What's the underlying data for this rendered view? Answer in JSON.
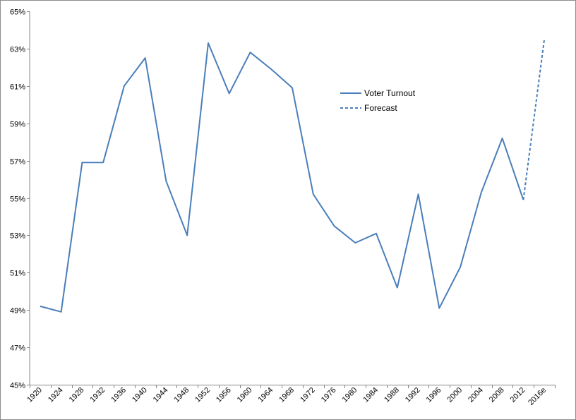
{
  "chart_data": {
    "type": "line",
    "title": "",
    "xlabel": "",
    "ylabel": "",
    "categories": [
      "1920",
      "1924",
      "1928",
      "1932",
      "1936",
      "1940",
      "1944",
      "1948",
      "1952",
      "1956",
      "1960",
      "1964",
      "1968",
      "1972",
      "1976",
      "1980",
      "1984",
      "1988",
      "1992",
      "1996",
      "2000",
      "2004",
      "2008",
      "2012",
      "2016e"
    ],
    "series": [
      {
        "name": "Voter Turnout",
        "style": "solid",
        "color": "#4a7eba",
        "values": [
          49.2,
          48.9,
          56.9,
          56.9,
          61.0,
          62.5,
          55.9,
          53.0,
          63.3,
          60.6,
          62.8,
          61.9,
          60.9,
          55.2,
          53.5,
          52.6,
          53.1,
          50.2,
          55.2,
          49.1,
          51.3,
          55.3,
          58.2,
          54.9,
          null
        ]
      },
      {
        "name": "Forecast",
        "style": "dashed",
        "color": "#4a7eba",
        "values": [
          null,
          null,
          null,
          null,
          null,
          null,
          null,
          null,
          null,
          null,
          null,
          null,
          null,
          null,
          null,
          null,
          null,
          null,
          null,
          null,
          null,
          null,
          null,
          54.9,
          63.5
        ]
      }
    ],
    "ylim": [
      45,
      65
    ],
    "yticks": [
      45,
      47,
      49,
      51,
      53,
      55,
      57,
      59,
      61,
      63,
      65
    ],
    "ytick_labels": [
      "45%",
      "47%",
      "49%",
      "51%",
      "53%",
      "55%",
      "57%",
      "59%",
      "61%",
      "63%",
      "65%"
    ],
    "grid": false,
    "legend_position": "top-right"
  }
}
